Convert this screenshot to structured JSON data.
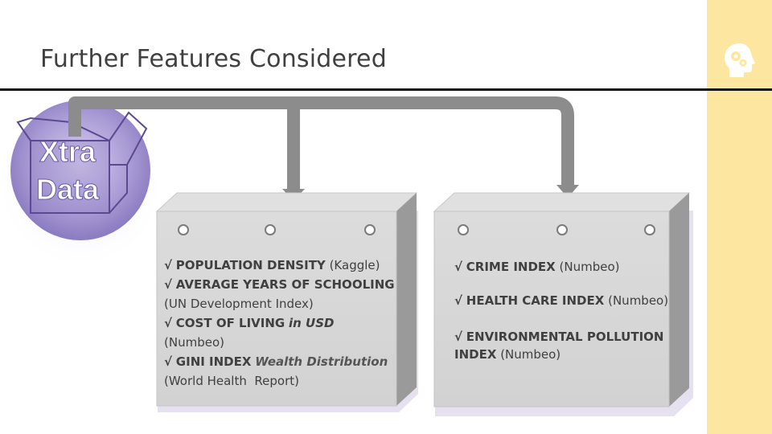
{
  "slide": {
    "title": "Further Features Considered"
  },
  "badge": {
    "line1": "Xtra",
    "line2": "Data"
  },
  "sidebar": {
    "icon": "head-with-gears-icon",
    "background": "#fde7a0"
  },
  "box1": {
    "items": [
      {
        "check": "√",
        "label": "POPULATION DENSITY",
        "source": "(Kaggle)"
      },
      {
        "check": "√",
        "label": "AVERAGE YEARS OF SCHOOLING",
        "source": "(UN Development Index)"
      },
      {
        "check": "√",
        "label": "COST OF LIVING",
        "emphasis": "in USD",
        "source": "(Numbeo)"
      },
      {
        "check": "√",
        "label": "GINI INDEX",
        "emphasis": "Wealth Distribution",
        "source": "(World Health  Report)"
      }
    ]
  },
  "box2": {
    "items": [
      {
        "check": "√",
        "label": "CRIME INDEX",
        "source": "(Numbeo)"
      },
      {
        "check": "√",
        "label": "HEALTH CARE INDEX",
        "source": "(Numbeo)"
      },
      {
        "check": "√",
        "label": "ENVIRONMENTAL POLLUTION",
        "label2": "INDEX",
        "source": "(Numbeo)"
      }
    ]
  },
  "colors": {
    "arrow": "#8c8c8c",
    "box_face": "#d6d6d6",
    "badge": "#9b8cc9"
  }
}
